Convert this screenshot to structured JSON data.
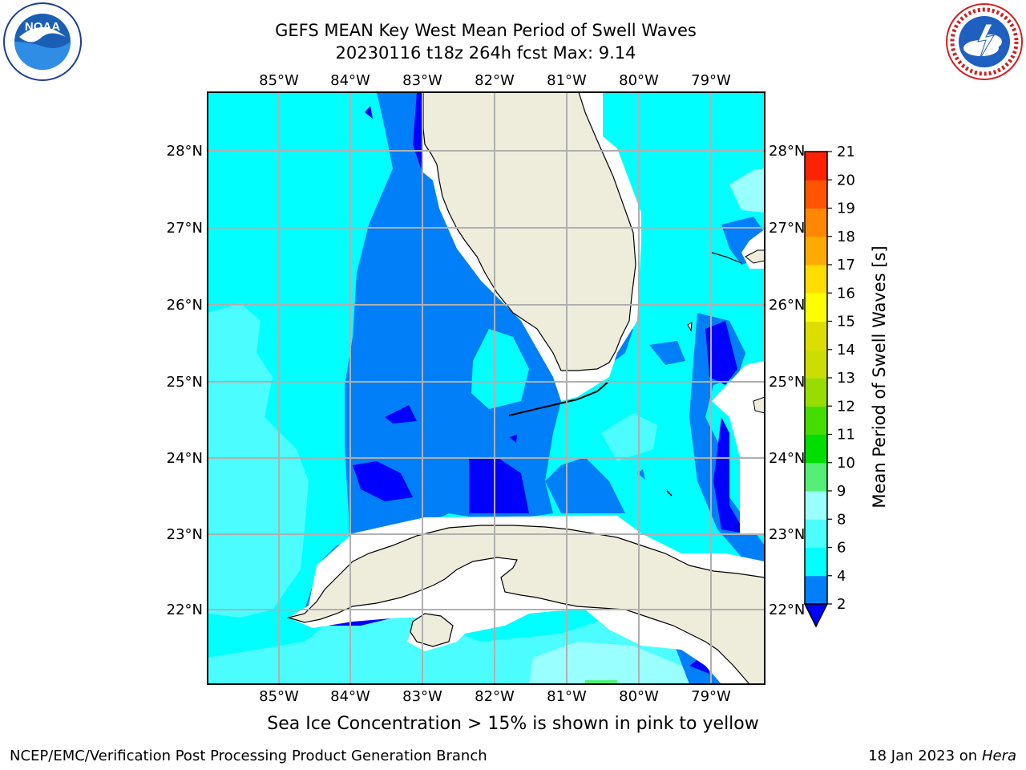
{
  "header": {
    "title_line1": "GEFS MEAN Key West Mean Period of Swell Waves",
    "title_line2": "20230116 t18z 264h fcst   Max: 9.14"
  },
  "logos": {
    "left": {
      "name": "NOAA",
      "text": "NOAA"
    },
    "right": {
      "name": "National Weather Service"
    }
  },
  "map": {
    "lon_labels": [
      "85°W",
      "84°W",
      "83°W",
      "82°W",
      "81°W",
      "80°W",
      "79°W"
    ],
    "lat_labels": [
      "28°N",
      "27°N",
      "26°N",
      "25°N",
      "24°N",
      "23°N",
      "22°N"
    ],
    "land_color": "#eeecdb",
    "grid_color": "#b0b0b0"
  },
  "colorbar": {
    "label": "Mean Period of Swell Waves [s]",
    "ticks": [
      "2",
      "4",
      "6",
      "8",
      "9",
      "10",
      "11",
      "12",
      "13",
      "14",
      "15",
      "16",
      "17",
      "18",
      "19",
      "20",
      "21"
    ],
    "colors": [
      "#007ff9",
      "#00ffff",
      "#4cfdff",
      "#99ffff",
      "#55ee77",
      "#00dd00",
      "#44dd00",
      "#99dd00",
      "#ccdd00",
      "#dddd00",
      "#ffff00",
      "#ffdd00",
      "#ffaa00",
      "#ff8800",
      "#ff5500",
      "#ff2200",
      "#ff0000"
    ],
    "under_color": "#0000ff"
  },
  "footer": {
    "ice_note": "Sea Ice Concentration > 15% is shown in pink to yellow",
    "left": "NCEP/EMC/Verification Post Processing Product Generation Branch",
    "date": "18 Jan 2023 on ",
    "host": "Hera"
  }
}
